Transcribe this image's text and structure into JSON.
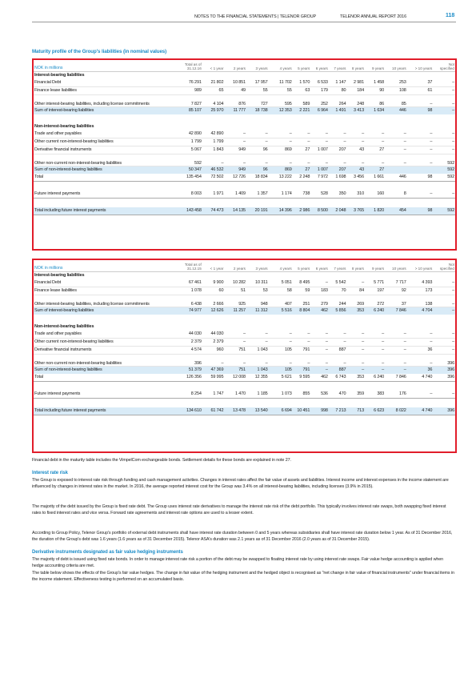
{
  "header": {
    "left": "NOTES TO THE FINANCIAL STATEMENTS | TELENOR GROUP",
    "right": "TELENOR ANNUAL REPORT 2016",
    "page": "118"
  },
  "section_title": "Maturity profile of the Group's liabilities (in nominal values)",
  "tables": [
    {
      "unit": "NOK in millions",
      "columns": [
        "Total as of 31.12.16",
        "< 1 year",
        "2 years",
        "3 years",
        "4 years",
        "5 years",
        "6 years",
        "7 years",
        "8 years",
        "9 years",
        "10 years",
        "> 10 years",
        "Not specified"
      ],
      "groups": [
        {
          "title": "Interest-bearing liabilities",
          "rows": [
            {
              "label": "Financial Debt",
              "values": [
                "76 291",
                "21 802",
                "10 851",
                "17 957",
                "11 702",
                "1 570",
                "6 533",
                "1 147",
                "2 981",
                "1 458",
                "253",
                "37",
                "–"
              ]
            },
            {
              "label": "Finance lease liabilities",
              "values": [
                "989",
                "65",
                "49",
                "55",
                "55",
                "63",
                "179",
                "80",
                "184",
                "90",
                "108",
                "61",
                "–"
              ]
            },
            {
              "label": "Other interest-bearing liabilities, including license commitments",
              "values": [
                "7 827",
                "4 104",
                "876",
                "727",
                "595",
                "589",
                "252",
                "264",
                "248",
                "86",
                "85",
                "–",
                "–"
              ]
            }
          ],
          "sum": {
            "label": "Sum of interest-bearing liabilities",
            "values": [
              "85 107",
              "25 970",
              "11 777",
              "18 738",
              "12 353",
              "2 221",
              "6 964",
              "1 491",
              "3 413",
              "1 634",
              "446",
              "98",
              "–"
            ]
          }
        },
        {
          "title": "Non-interest-bearing liabilities",
          "rows": [
            {
              "label": "Trade and other payables",
              "values": [
                "42 890",
                "42 890",
                "–",
                "–",
                "–",
                "–",
                "–",
                "–",
                "–",
                "–",
                "–",
                "–",
                "–"
              ]
            },
            {
              "label": "Other current non-interest-bearing liabilities",
              "values": [
                "1 799",
                "1 799",
                "–",
                "–",
                "–",
                "–",
                "–",
                "–",
                "–",
                "–",
                "–",
                "–",
                "–"
              ]
            },
            {
              "label": "Derivative financial instruments",
              "values": [
                "5 067",
                "1 843",
                "949",
                "96",
                "869",
                "27",
                "1 007",
                "207",
                "43",
                "27",
                "–",
                "–",
                "–"
              ]
            },
            {
              "label": "Other non-current non-interest-bearing liabilities",
              "values": [
                "592",
                "–",
                "–",
                "–",
                "–",
                "–",
                "–",
                "–",
                "–",
                "–",
                "–",
                "–",
                "592"
              ]
            }
          ],
          "sum": {
            "label": "Sum of non-interest-bearing liabilities",
            "values": [
              "50 347",
              "46 532",
              "949",
              "96",
              "869",
              "27",
              "1 007",
              "207",
              "43",
              "27",
              "",
              "",
              "592"
            ]
          }
        }
      ],
      "total": {
        "label": "Total",
        "values": [
          "135 454",
          "72 502",
          "12 726",
          "18 834",
          "13 222",
          "2 248",
          "7 972",
          "1 698",
          "3 456",
          "1 661",
          "446",
          "98",
          "592"
        ]
      },
      "future": {
        "label": "Future interest payments",
        "values": [
          "8 003",
          "1 971",
          "1 409",
          "1 357",
          "1 174",
          "738",
          "528",
          "350",
          "310",
          "160",
          "8",
          "–",
          "–"
        ]
      },
      "final": {
        "label": "Total including future interest payments",
        "values": [
          "143 458",
          "74 473",
          "14 135",
          "20 191",
          "14 396",
          "2 986",
          "8 500",
          "2 048",
          "3 765",
          "1 820",
          "454",
          "98",
          "592"
        ]
      }
    },
    {
      "unit": "NOK in millions",
      "columns": [
        "Total as of 31.12.15",
        "< 1 year",
        "2 years",
        "3 years",
        "4 years",
        "5 years",
        "6 years",
        "7 years",
        "8 years",
        "9 years",
        "10 years",
        "> 10 years",
        "Not specified"
      ],
      "groups": [
        {
          "title": "Interest-bearing liabilities",
          "rows": [
            {
              "label": "Financial Debt",
              "values": [
                "67 461",
                "9 900",
                "10 282",
                "10 311",
                "5 051",
                "8 495",
                "–",
                "5 542",
                "–",
                "5 771",
                "7 717",
                "4 393",
                "–"
              ]
            },
            {
              "label": "Finance lease liabilities",
              "values": [
                "1 078",
                "60",
                "51",
                "53",
                "58",
                "59",
                "183",
                "70",
                "84",
                "197",
                "92",
                "173",
                "–"
              ]
            },
            {
              "label": "Other interest-bearing liabilities, including license commitments",
              "values": [
                "6 438",
                "2 666",
                "925",
                "948",
                "407",
                "251",
                "279",
                "244",
                "269",
                "272",
                "37",
                "138",
                "–"
              ]
            }
          ],
          "sum": {
            "label": "Sum of interest-bearing liabilities",
            "values": [
              "74 977",
              "12 626",
              "11 257",
              "11 312",
              "5 516",
              "8 804",
              "462",
              "5 856",
              "353",
              "6 240",
              "7 846",
              "4 704",
              "–"
            ]
          }
        },
        {
          "title": "Non-interest-bearing liabilities",
          "rows": [
            {
              "label": "Trade and other payables",
              "values": [
                "44 030",
                "44 030",
                "–",
                "–",
                "–",
                "–",
                "–",
                "–",
                "–",
                "–",
                "–",
                "–",
                "–"
              ]
            },
            {
              "label": "Other current non-interest-bearing liabilities",
              "values": [
                "2 379",
                "2 379",
                "–",
                "–",
                "–",
                "–",
                "–",
                "–",
                "–",
                "–",
                "–",
                "–",
                "–"
              ]
            },
            {
              "label": "Derivative financial instruments",
              "values": [
                "4 574",
                "960",
                "751",
                "1 043",
                "105",
                "791",
                "–",
                "887",
                "–",
                "–",
                "–",
                "36",
                "–"
              ]
            },
            {
              "label": "Other non-current non-interest-bearing liabilities",
              "values": [
                "396",
                "–",
                "–",
                "–",
                "–",
                "–",
                "–",
                "–",
                "–",
                "–",
                "–",
                "–",
                "396"
              ]
            }
          ],
          "sum": {
            "label": "Sum of non-interest-bearing liabilities",
            "values": [
              "51 379",
              "47 369",
              "751",
              "1 043",
              "105",
              "791",
              "–",
              "887",
              "–",
              "–",
              "–",
              "36",
              "396"
            ]
          }
        }
      ],
      "total": {
        "label": "Total",
        "values": [
          "126 356",
          "59 995",
          "12 008",
          "12 355",
          "5 621",
          "9 595",
          "462",
          "6 743",
          "353",
          "6 240",
          "7 846",
          "4 740",
          "396"
        ]
      },
      "future": {
        "label": "Future interest payments",
        "values": [
          "8 254",
          "1 747",
          "1 470",
          "1 185",
          "1 073",
          "855",
          "536",
          "470",
          "359",
          "383",
          "176",
          "–",
          "–"
        ]
      },
      "final": {
        "label": "Total including future interest payments",
        "values": [
          "134 610",
          "61 742",
          "13 478",
          "13 540",
          "6 694",
          "10 451",
          "998",
          "7 213",
          "713",
          "6 623",
          "8 022",
          "4 740",
          "396"
        ]
      }
    }
  ],
  "note": "Financial debt in the maturity table includes the VimpelCom exchangeable bonds. Settlement details for these bonds are explained in note 27.",
  "interest_rate_risk": {
    "title": "Interest rate risk",
    "p1": "The Group is exposed to interest rate risk through funding and cash management activities. Changes in interest rates affect the fair value of assets and liabilities. Interest income and interest expenses in the income statement are influenced by changes in interest rates in the market. In 2016, the average reported interest cost for the Group was 3.4% on all interest-bearing liabilities, including licenses (3.9% in 2015).",
    "p2": "The majority of the debt issued by the Group is fixed rate debt. The Group uses interest rate derivatives to manage the interest rate risk of the debt portfolio. This typically involves interest rate swaps, both swapping fixed interest rates to fixed interest rates and vice versa. Forward rate agreements and interest rate options are used to a lesser extent.",
    "p3": "According to Group Policy, Telenor Group's portfolio of external debt instruments shall have interest rate duration between 0 and 5 years whereas subsidiaries shall have interest rate duration below 1 year. As of 31 December 2016, the duration of the Group's debt was 1.6 years (1.6 years as of 31 December 2015). Telenor ASA's duration was 2.1 years as of 31 December 2016 (2.0 years as of 31 December 2015)."
  },
  "derivatives": {
    "title": "Derivative instruments designated as fair value hedging instruments",
    "p1": "The majority of debt is issued using fixed rate bonds. In order to manage interest rate risk a portion of the debt may be swapped to floating interest rate by using interest rate swaps. Fair value hedge accounting is applied when hedge accounting criteria are met.",
    "p2": "The table below shows the effects of the Group's fair value hedges. The change in fair value of the hedging instrument and the hedged object is recognised as \"net change in fair value of financial instruments\" under financial items in the income statement. Effectiveness testing is performed on an accumulated basis."
  }
}
